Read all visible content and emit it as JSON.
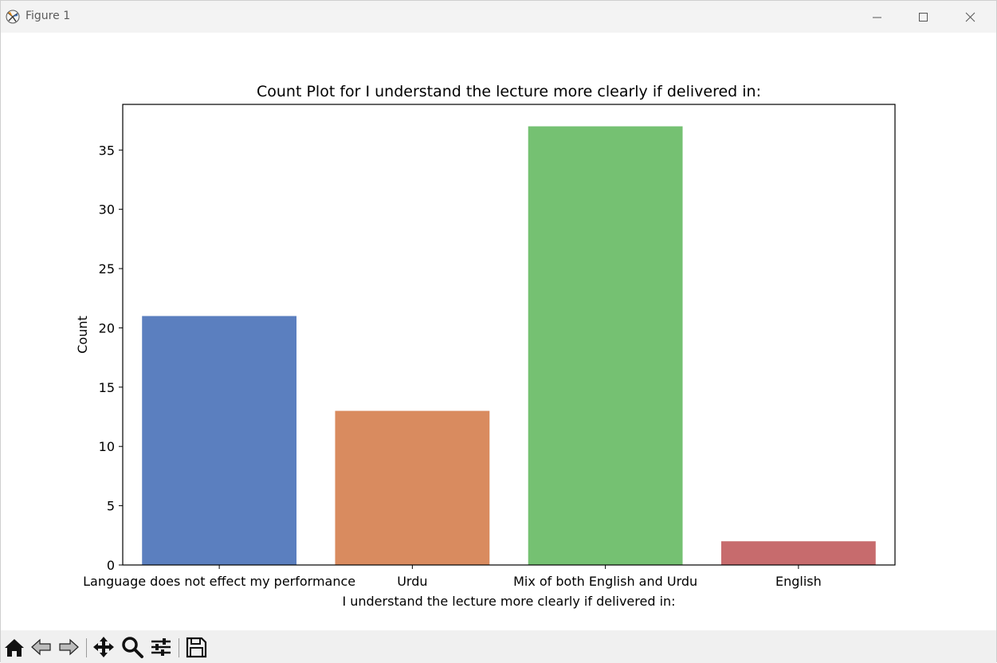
{
  "window": {
    "title": "Figure 1",
    "controls": [
      "minimize-icon",
      "maximize-icon",
      "close-icon"
    ]
  },
  "toolbar": {
    "buttons": [
      "home-icon",
      "back-arrow-icon",
      "forward-arrow-icon",
      "pan-move-icon",
      "zoom-magnifier-icon",
      "configure-subplots-icon",
      "save-disk-icon"
    ]
  },
  "chart_data": {
    "type": "bar",
    "title": "Count Plot for I understand the lecture more clearly if delivered in:",
    "xlabel": "I understand the lecture more clearly if delivered in:",
    "ylabel": "Count",
    "categories": [
      "Language does not effect my performance",
      "Urdu",
      "Mix of both English and Urdu",
      "English"
    ],
    "values": [
      21,
      13,
      37,
      2
    ],
    "colors": [
      "#5b7fbf",
      "#d98b5f",
      "#75c172",
      "#c76b6d"
    ],
    "ylim": [
      0,
      38.85
    ],
    "yticks": [
      0,
      5,
      10,
      15,
      20,
      25,
      30,
      35
    ],
    "ytick_labels": [
      "0",
      "5",
      "10",
      "15",
      "20",
      "25",
      "30",
      "35"
    ],
    "grid": false,
    "legend": "none"
  }
}
